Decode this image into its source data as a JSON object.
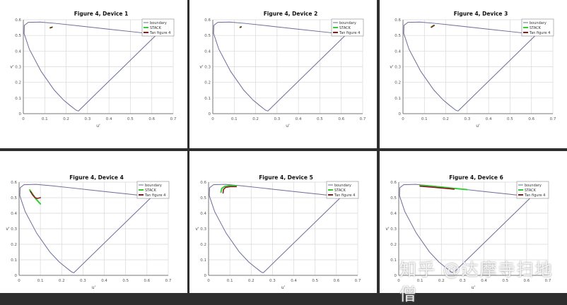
{
  "chart_data": [
    {
      "type": "line",
      "title": "Figure 4, Device 1",
      "xlabel": "u'",
      "ylabel": "v'",
      "xlim": [
        0,
        0.7
      ],
      "ylim": [
        0,
        0.6
      ],
      "grid": true,
      "legend_position": "top-right",
      "series": [
        {
          "name": "STACK",
          "x": [
            0.125,
            0.135
          ],
          "y": [
            0.548,
            0.553
          ]
        },
        {
          "name": "Tan figure 4",
          "x": [
            0.126,
            0.134
          ],
          "y": [
            0.549,
            0.552
          ]
        }
      ]
    },
    {
      "type": "line",
      "title": "Figure 4, Device 2",
      "xlabel": "u'",
      "ylabel": "v'",
      "xlim": [
        0,
        0.7
      ],
      "ylim": [
        0,
        0.6
      ],
      "grid": true,
      "legend_position": "top-right",
      "series": [
        {
          "name": "STACK",
          "x": [
            0.127,
            0.132
          ],
          "y": [
            0.552,
            0.556
          ]
        },
        {
          "name": "Tan figure 4",
          "x": [
            0.128,
            0.133
          ],
          "y": [
            0.551,
            0.554
          ]
        }
      ]
    },
    {
      "type": "line",
      "title": "Figure 4, Device 3",
      "xlabel": "u'",
      "ylabel": "v'",
      "xlim": [
        0,
        0.7
      ],
      "ylim": [
        0,
        0.6
      ],
      "grid": true,
      "legend_position": "top-right",
      "series": [
        {
          "name": "STACK",
          "x": [
            0.132,
            0.138,
            0.145
          ],
          "y": [
            0.553,
            0.559,
            0.565
          ]
        },
        {
          "name": "Tan figure 4",
          "x": [
            0.133,
            0.139,
            0.146
          ],
          "y": [
            0.552,
            0.558,
            0.563
          ]
        }
      ]
    },
    {
      "type": "line",
      "title": "Figure 4, Device 4",
      "xlabel": "u'",
      "ylabel": "v'",
      "xlim": [
        0,
        0.7
      ],
      "ylim": [
        0,
        0.6
      ],
      "grid": true,
      "legend_position": "top-right",
      "series": [
        {
          "name": "STACK",
          "x": [
            0.05,
            0.065,
            0.08,
            0.1
          ],
          "y": [
            0.55,
            0.52,
            0.49,
            0.46
          ]
        },
        {
          "name": "Tan figure 4",
          "x": [
            0.053,
            0.065,
            0.075,
            0.085,
            0.1
          ],
          "y": [
            0.54,
            0.515,
            0.5,
            0.495,
            0.5
          ]
        }
      ]
    },
    {
      "type": "line",
      "title": "Figure 4, Device 5",
      "xlabel": "u'",
      "ylabel": "v'",
      "xlim": [
        0,
        0.7
      ],
      "ylim": [
        0,
        0.6
      ],
      "grid": true,
      "legend_position": "top-right",
      "series": [
        {
          "name": "STACK",
          "x": [
            0.058,
            0.062,
            0.075,
            0.095,
            0.13
          ],
          "y": [
            0.535,
            0.56,
            0.572,
            0.577,
            0.577
          ]
        },
        {
          "name": "Tan figure 4",
          "x": [
            0.068,
            0.07,
            0.08,
            0.1,
            0.13
          ],
          "y": [
            0.53,
            0.553,
            0.566,
            0.571,
            0.571
          ]
        }
      ]
    },
    {
      "type": "line",
      "title": "Figure 4, Device 6",
      "xlabel": "u'",
      "ylabel": "v'",
      "xlim": [
        0,
        0.7
      ],
      "ylim": [
        0,
        0.6
      ],
      "grid": true,
      "legend_position": "top-right",
      "series": [
        {
          "name": "STACK",
          "x": [
            0.1,
            0.2,
            0.32
          ],
          "y": [
            0.58,
            0.568,
            0.552
          ]
        },
        {
          "name": "Tan figure 4",
          "x": [
            0.1,
            0.18,
            0.26
          ],
          "y": [
            0.574,
            0.565,
            0.555
          ]
        }
      ]
    }
  ],
  "boundary": {
    "name": "boundary",
    "u": [
      0.2568,
      0.246,
      0.2347,
      0.216,
      0.1877,
      0.1441,
      0.0828,
      0.0282,
      0.0035,
      0.0046,
      0.0231,
      0.0792,
      0.1531,
      0.2623,
      0.4035,
      0.5203,
      0.6234,
      0.2568
    ],
    "v": [
      0.0165,
      0.0226,
      0.035,
      0.055,
      0.0871,
      0.151,
      0.2708,
      0.4117,
      0.513,
      0.5638,
      0.5837,
      0.5856,
      0.5766,
      0.5605,
      0.5393,
      0.5219,
      0.5065,
      0.0165
    ]
  },
  "x_ticks": [
    "0",
    "0.1",
    "0.2",
    "0.3",
    "0.4",
    "0.5",
    "0.6",
    "0.7"
  ],
  "y_ticks": [
    "0",
    "0.1",
    "0.2",
    "0.3",
    "0.4",
    "0.5",
    "0.6"
  ],
  "colors": {
    "boundary": "#6b6b9a",
    "STACK": "#33cc33",
    "Tan figure 4": "#8b1a1a",
    "grid": "#d8d8d8",
    "background": "#2e2e2e"
  },
  "watermark": "知乎 @达摩寺扫地僧"
}
